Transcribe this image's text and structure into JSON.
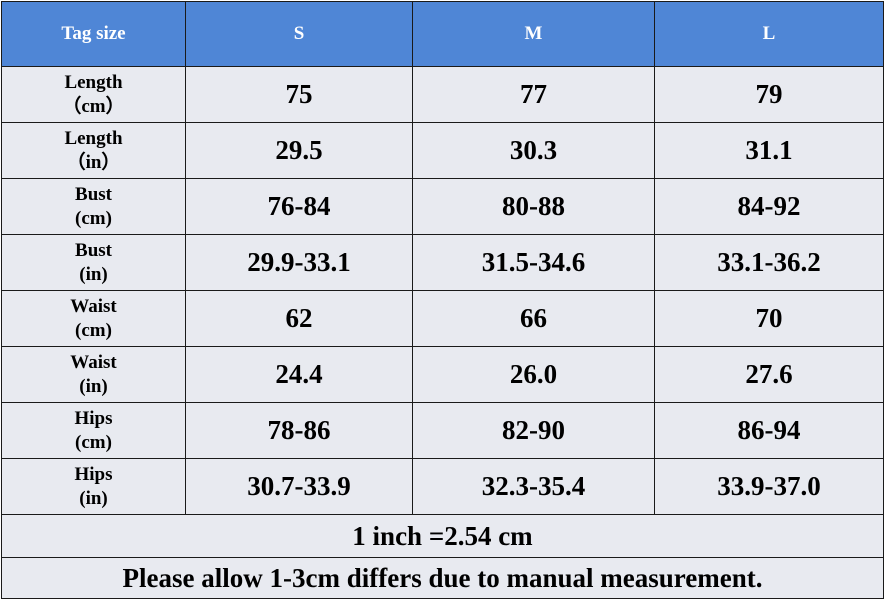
{
  "header": {
    "label": "Tag size",
    "sizes": [
      "S",
      "M",
      "L"
    ]
  },
  "rows": [
    {
      "label_line1": "Length",
      "label_line2": "（cm）",
      "values": [
        "75",
        "77",
        "79"
      ]
    },
    {
      "label_line1": "Length",
      "label_line2": "（in）",
      "values": [
        "29.5",
        "30.3",
        "31.1"
      ]
    },
    {
      "label_line1": "Bust",
      "label_line2": "(cm)",
      "values": [
        "76-84",
        "80-88",
        "84-92"
      ]
    },
    {
      "label_line1": "Bust",
      "label_line2": "(in)",
      "values": [
        "29.9-33.1",
        "31.5-34.6",
        "33.1-36.2"
      ]
    },
    {
      "label_line1": "Waist",
      "label_line2": "(cm)",
      "values": [
        "62",
        "66",
        "70"
      ]
    },
    {
      "label_line1": "Waist",
      "label_line2": "(in)",
      "values": [
        "24.4",
        "26.0",
        "27.6"
      ]
    },
    {
      "label_line1": "Hips",
      "label_line2": "(cm)",
      "values": [
        "78-86",
        "82-90",
        "86-94"
      ]
    },
    {
      "label_line1": "Hips",
      "label_line2": "(in)",
      "values": [
        "30.7-33.9",
        "32.3-35.4",
        "33.9-37.0"
      ]
    }
  ],
  "notes": {
    "conversion": "1 inch =2.54 cm",
    "disclaimer": "Please allow 1-3cm differs due to manual measurement."
  },
  "colors": {
    "header_background": "#4f86d6",
    "header_text": "#ffffff",
    "cell_background": "#e8eaf0",
    "border": "#1a1a1a"
  }
}
